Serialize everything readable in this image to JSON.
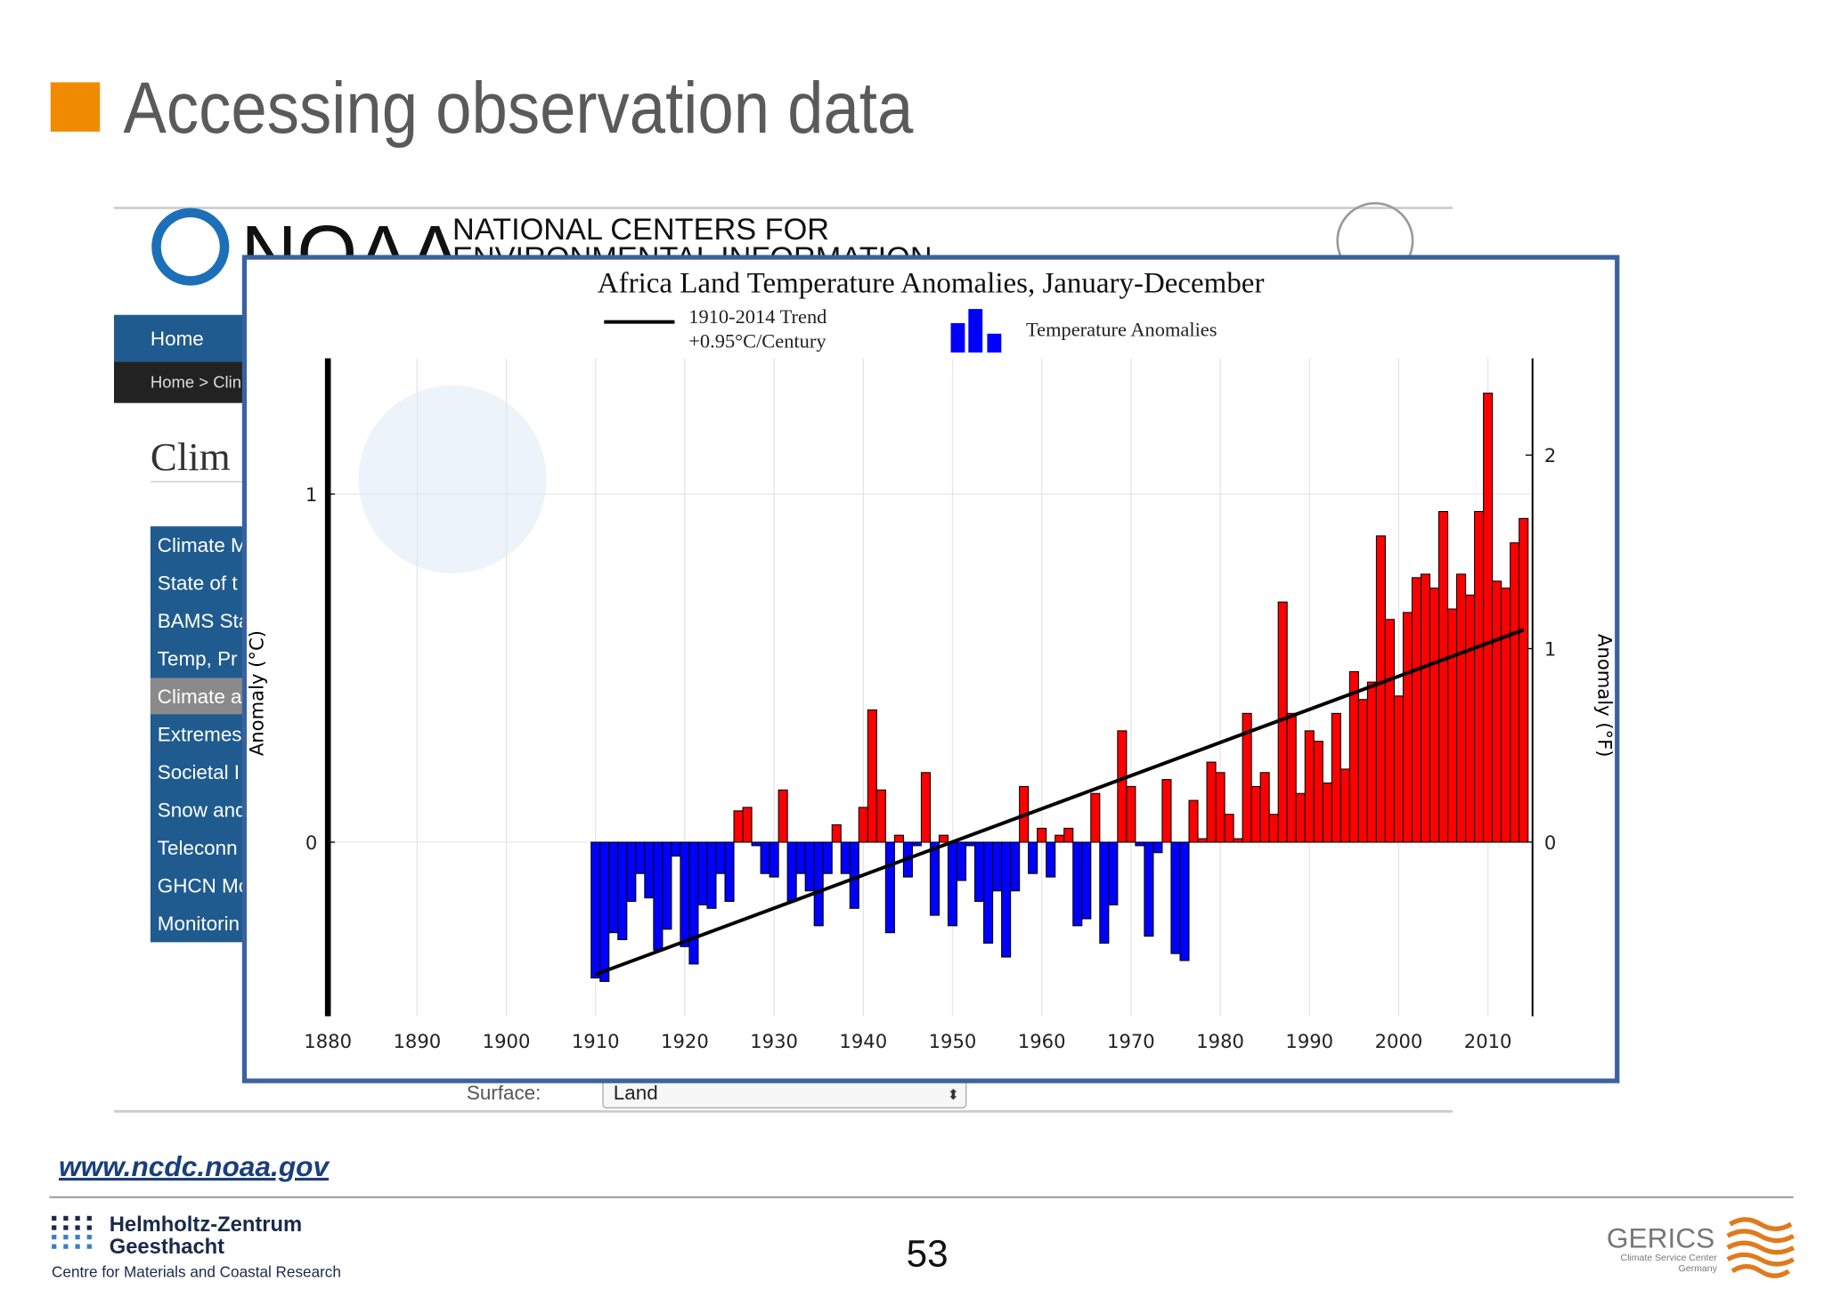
{
  "slide": {
    "title": "Accessing observation data",
    "url": "www.ncdc.noaa.gov",
    "page_number": "53",
    "footer_left": [
      "Helmholtz-Zentrum",
      "Geesthacht",
      "Centre for Materials and Coastal Research"
    ],
    "footer_right": [
      "GERICS",
      "Climate Service Center",
      "Germany"
    ]
  },
  "background": {
    "logo": "NOAA",
    "org": [
      "NATIONAL CENTERS FOR",
      "ENVIRONMENTAL INFORMATION"
    ],
    "nav": "Home",
    "breadcrumb": "Home > Clin",
    "heading": "Clim",
    "menu": [
      "Climate M",
      "State of t",
      "BAMS Sta",
      "Temp, Pr",
      "Climate a",
      "Extremes",
      "Societal I",
      "Snow and",
      "Teleconn",
      "GHCN Mo",
      "Monitorin"
    ],
    "field_label": "Surface:",
    "field_value": "Land"
  },
  "chart_data": {
    "type": "bar",
    "title": "Africa Land Temperature Anomalies, January-December",
    "y_label": "Anomaly (°C)",
    "y2_label": "Anomaly (°F)",
    "x": [
      1910,
      1911,
      1912,
      1913,
      1914,
      1915,
      1916,
      1917,
      1918,
      1919,
      1920,
      1921,
      1922,
      1923,
      1924,
      1925,
      1926,
      1927,
      1928,
      1929,
      1930,
      1931,
      1932,
      1933,
      1934,
      1935,
      1936,
      1937,
      1938,
      1939,
      1940,
      1941,
      1942,
      1943,
      1944,
      1945,
      1946,
      1947,
      1948,
      1949,
      1950,
      1951,
      1952,
      1953,
      1954,
      1955,
      1956,
      1957,
      1958,
      1959,
      1960,
      1961,
      1962,
      1963,
      1964,
      1965,
      1966,
      1967,
      1968,
      1969,
      1970,
      1971,
      1972,
      1973,
      1974,
      1975,
      1976,
      1977,
      1978,
      1979,
      1980,
      1981,
      1982,
      1983,
      1984,
      1985,
      1986,
      1987,
      1988,
      1989,
      1990,
      1991,
      1992,
      1993,
      1994,
      1995,
      1996,
      1997,
      1998,
      1999,
      2000,
      2001,
      2002,
      2003,
      2004,
      2005,
      2006,
      2007,
      2008,
      2009,
      2010,
      2011,
      2012,
      2013,
      2014
    ],
    "series": [
      {
        "name": "Temperature Anomalies",
        "positive_color": "#ff0000",
        "negative_color": "#0000ff",
        "values": [
          -0.39,
          -0.4,
          -0.26,
          -0.28,
          -0.17,
          -0.09,
          -0.16,
          -0.31,
          -0.25,
          -0.04,
          -0.3,
          -0.35,
          -0.18,
          -0.19,
          -0.09,
          -0.17,
          0.09,
          0.1,
          -0.01,
          -0.09,
          -0.1,
          0.15,
          -0.17,
          -0.09,
          -0.14,
          -0.24,
          -0.09,
          0.05,
          -0.09,
          -0.19,
          0.1,
          0.38,
          0.15,
          -0.26,
          0.02,
          -0.1,
          -0.01,
          0.2,
          -0.21,
          0.02,
          -0.24,
          -0.11,
          -0.01,
          -0.17,
          -0.29,
          -0.14,
          -0.33,
          -0.14,
          0.16,
          -0.09,
          0.04,
          -0.1,
          0.02,
          0.04,
          -0.24,
          -0.22,
          0.14,
          -0.29,
          -0.18,
          0.32,
          0.16,
          -0.01,
          -0.27,
          -0.03,
          0.18,
          -0.32,
          -0.34,
          0.12,
          0.01,
          0.23,
          0.2,
          0.08,
          0.01,
          0.37,
          0.16,
          0.2,
          0.08,
          0.69,
          0.37,
          0.14,
          0.32,
          0.29,
          0.17,
          0.37,
          0.21,
          0.49,
          0.41,
          0.46,
          0.88,
          0.64,
          0.42,
          0.66,
          0.76,
          0.77,
          0.73,
          0.95,
          0.67,
          0.77,
          0.71,
          0.95,
          1.29,
          0.75,
          0.73,
          0.86,
          0.93
        ]
      }
    ],
    "trend": {
      "label": [
        "1910-2014 Trend",
        "+0.95°C/Century"
      ],
      "color": "#000000",
      "x": [
        1910,
        2014
      ],
      "values": [
        -0.38,
        0.61
      ]
    },
    "xlim": [
      1880,
      2015
    ],
    "xticks": [
      1880,
      1890,
      1900,
      1910,
      1920,
      1930,
      1940,
      1950,
      1960,
      1970,
      1980,
      1990,
      2000,
      2010
    ],
    "ylim": [
      -0.5,
      1.39
    ],
    "yticks": [
      0,
      1
    ],
    "y2lim": [
      -0.9,
      2.5
    ],
    "y2ticks": [
      0,
      1,
      2
    ],
    "grid": true
  }
}
